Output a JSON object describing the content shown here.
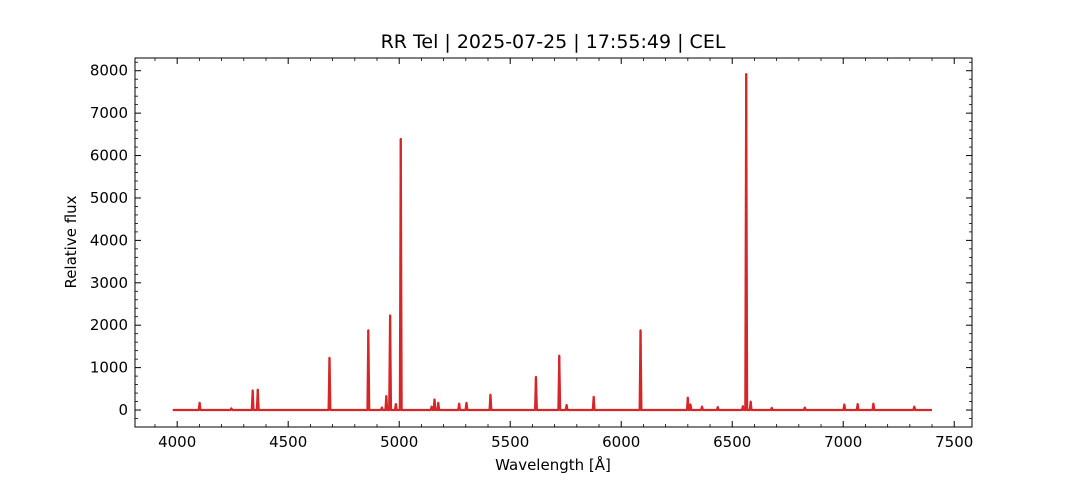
{
  "chart_data": {
    "type": "line",
    "title": "RR Tel | 2025-07-25 | 17:55:49 | CEL",
    "xlabel": "Wavelength [Å]",
    "ylabel": "Relative flux",
    "xlim": [
      3810,
      7580
    ],
    "ylim": [
      -400,
      8300
    ],
    "xticks": [
      4000,
      4500,
      5000,
      5500,
      6000,
      6500,
      7000,
      7500
    ],
    "yticks": [
      0,
      1000,
      2000,
      3000,
      4000,
      5000,
      6000,
      7000,
      8000
    ],
    "grid": false,
    "continuum_range": [
      3980,
      7400
    ],
    "series": [
      {
        "color": "#d62728",
        "emission_lines": [
          {
            "wavelength": 4101,
            "flux": 170
          },
          {
            "wavelength": 4244,
            "flux": 40
          },
          {
            "wavelength": 4340,
            "flux": 460
          },
          {
            "wavelength": 4363,
            "flux": 480
          },
          {
            "wavelength": 4686,
            "flux": 1230
          },
          {
            "wavelength": 4861,
            "flux": 1880
          },
          {
            "wavelength": 4922,
            "flux": 60
          },
          {
            "wavelength": 4942,
            "flux": 330
          },
          {
            "wavelength": 4959,
            "flux": 2230
          },
          {
            "wavelength": 4985,
            "flux": 140
          },
          {
            "wavelength": 5007,
            "flux": 6390
          },
          {
            "wavelength": 5146,
            "flux": 80
          },
          {
            "wavelength": 5159,
            "flux": 250
          },
          {
            "wavelength": 5176,
            "flux": 170
          },
          {
            "wavelength": 5270,
            "flux": 150
          },
          {
            "wavelength": 5303,
            "flux": 170
          },
          {
            "wavelength": 5411,
            "flux": 360
          },
          {
            "wavelength": 5616,
            "flux": 780
          },
          {
            "wavelength": 5721,
            "flux": 1280
          },
          {
            "wavelength": 5754,
            "flux": 120
          },
          {
            "wavelength": 5876,
            "flux": 310
          },
          {
            "wavelength": 6087,
            "flux": 1880
          },
          {
            "wavelength": 6300,
            "flux": 290
          },
          {
            "wavelength": 6312,
            "flux": 130
          },
          {
            "wavelength": 6364,
            "flux": 80
          },
          {
            "wavelength": 6435,
            "flux": 70
          },
          {
            "wavelength": 6548,
            "flux": 90
          },
          {
            "wavelength": 6563,
            "flux": 7920
          },
          {
            "wavelength": 6583,
            "flux": 200
          },
          {
            "wavelength": 6678,
            "flux": 50
          },
          {
            "wavelength": 6827,
            "flux": 60
          },
          {
            "wavelength": 7005,
            "flux": 130
          },
          {
            "wavelength": 7065,
            "flux": 140
          },
          {
            "wavelength": 7136,
            "flux": 150
          },
          {
            "wavelength": 7320,
            "flux": 80
          }
        ]
      }
    ]
  }
}
